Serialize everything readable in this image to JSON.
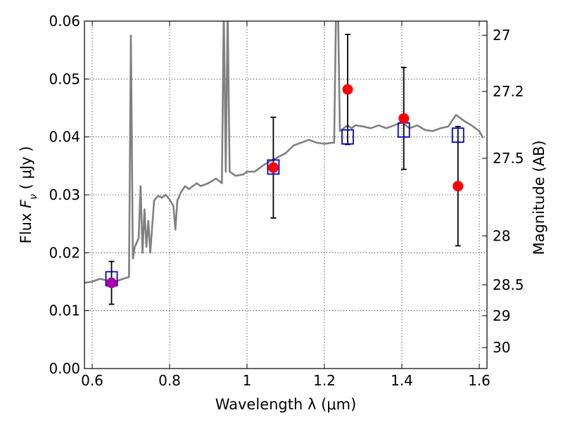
{
  "chart_data": {
    "type": "scatter",
    "title": "",
    "xlabel": "Wavelength  λ (μm)",
    "ylabel_parts": [
      "Flux ",
      "F",
      "ν",
      " ( μJy )"
    ],
    "ylabel_right": "Magnitude (AB)",
    "xlim": [
      0.58,
      1.62
    ],
    "ylim": [
      0,
      0.06
    ],
    "grid": true,
    "x_ticks": [
      0.6,
      0.8,
      1.0,
      1.2,
      1.4,
      1.6
    ],
    "x_tick_labels": [
      "0.6",
      "0.8",
      "1",
      "1.2",
      "1.4",
      "1.6"
    ],
    "y_ticks": [
      0.0,
      0.01,
      0.02,
      0.03,
      0.04,
      0.05,
      0.06
    ],
    "y_tick_labels": [
      "0.00",
      "0.01",
      "0.02",
      "0.03",
      "0.04",
      "0.05",
      "0.06"
    ],
    "right_ticks": [
      {
        "label": "27",
        "value": 27.0
      },
      {
        "label": "27.2",
        "value": 27.2
      },
      {
        "label": "27.5",
        "value": 27.5
      },
      {
        "label": "28",
        "value": 28.0
      },
      {
        "label": "28.5",
        "value": 28.5
      },
      {
        "label": "29",
        "value": 29.0
      },
      {
        "label": "30",
        "value": 30.0
      }
    ],
    "colors": {
      "spectrum": "#808080",
      "observed": "#ff0000",
      "observed_first": "#aa00aa",
      "model": "#0000cc",
      "errorbar": "#000000"
    },
    "spectrum": {
      "x": [
        0.58,
        0.6,
        0.62,
        0.64,
        0.66,
        0.68,
        0.695,
        0.7,
        0.705,
        0.71,
        0.72,
        0.725,
        0.73,
        0.735,
        0.74,
        0.745,
        0.75,
        0.76,
        0.77,
        0.78,
        0.79,
        0.8,
        0.81,
        0.815,
        0.82,
        0.83,
        0.84,
        0.85,
        0.86,
        0.87,
        0.88,
        0.9,
        0.92,
        0.935,
        0.94,
        0.945,
        0.95,
        0.955,
        0.97,
        0.99,
        1.0,
        1.02,
        1.04,
        1.06,
        1.08,
        1.1,
        1.12,
        1.14,
        1.16,
        1.18,
        1.2,
        1.22,
        1.225,
        1.23,
        1.235,
        1.24,
        1.25,
        1.26,
        1.27,
        1.28,
        1.3,
        1.32,
        1.34,
        1.36,
        1.38,
        1.4,
        1.42,
        1.44,
        1.46,
        1.48,
        1.5,
        1.52,
        1.54,
        1.56,
        1.58,
        1.6,
        1.61
      ],
      "y": [
        0.0148,
        0.015,
        0.0155,
        0.0152,
        0.015,
        0.0155,
        0.0158,
        0.0575,
        0.019,
        0.021,
        0.0225,
        0.0315,
        0.02,
        0.0275,
        0.021,
        0.0255,
        0.02,
        0.029,
        0.0298,
        0.0295,
        0.03,
        0.0292,
        0.028,
        0.024,
        0.029,
        0.0305,
        0.0315,
        0.031,
        0.0315,
        0.032,
        0.0315,
        0.032,
        0.0328,
        0.032,
        0.062,
        0.034,
        0.062,
        0.034,
        0.0333,
        0.0335,
        0.034,
        0.034,
        0.035,
        0.0358,
        0.0365,
        0.0372,
        0.0385,
        0.039,
        0.0395,
        0.039,
        0.0388,
        0.039,
        0.039,
        0.062,
        0.062,
        0.041,
        0.0415,
        0.042,
        0.0415,
        0.042,
        0.0418,
        0.0415,
        0.042,
        0.0415,
        0.042,
        0.0425,
        0.0415,
        0.042,
        0.0412,
        0.041,
        0.0415,
        0.0418,
        0.0438,
        0.0428,
        0.042,
        0.041,
        0.0398
      ]
    },
    "model_points": {
      "x": [
        0.65,
        1.068,
        1.26,
        1.405,
        1.545
      ],
      "y": [
        0.0155,
        0.0348,
        0.04,
        0.0412,
        0.0403
      ]
    },
    "observed_points": {
      "x": [
        0.65,
        1.068,
        1.26,
        1.405,
        1.545
      ],
      "y": [
        0.0148,
        0.0347,
        0.0482,
        0.0432,
        0.0315
      ],
      "yerr": [
        0.0037,
        0.0087,
        0.0095,
        0.0088,
        0.0103
      ]
    }
  }
}
